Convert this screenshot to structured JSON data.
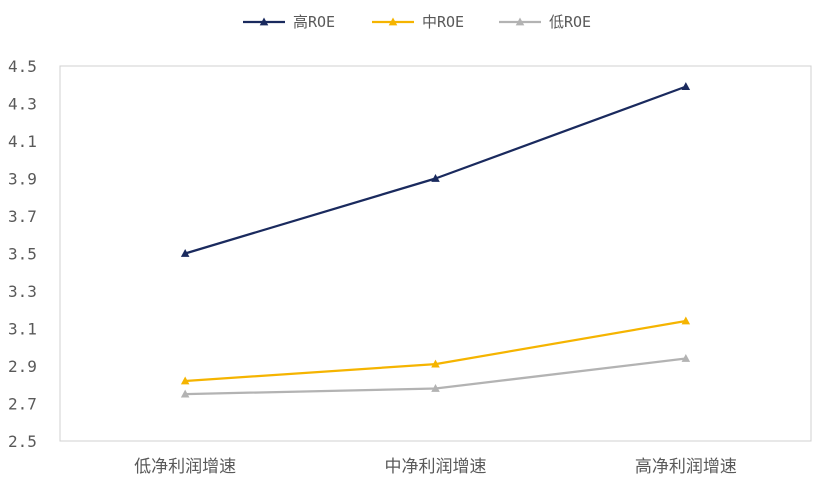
{
  "chart_data": {
    "type": "line",
    "title": "",
    "xlabel": "",
    "ylabel": "",
    "categories": [
      "低净利润增速",
      "中净利润增速",
      "高净利润增速"
    ],
    "ylim": [
      2.5,
      4.5
    ],
    "yticks": [
      "2.5",
      "2.7",
      "2.9",
      "3.1",
      "3.3",
      "3.5",
      "3.7",
      "3.9",
      "4.1",
      "4.3",
      "4.5"
    ],
    "grid": false,
    "legend_position": "top-center",
    "marker": "triangle",
    "series": [
      {
        "name": "高ROE",
        "color": "#1a2a5e",
        "values": [
          3.5,
          3.9,
          4.39
        ]
      },
      {
        "name": "中ROE",
        "color": "#f5b400",
        "values": [
          2.82,
          2.91,
          3.14
        ]
      },
      {
        "name": "低ROE",
        "color": "#b3b3b3",
        "values": [
          2.75,
          2.78,
          2.94
        ]
      }
    ]
  }
}
